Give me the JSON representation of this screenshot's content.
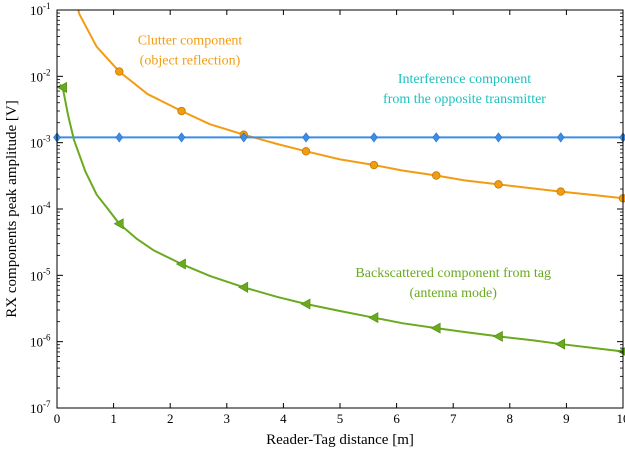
{
  "chart_data": {
    "type": "line",
    "xlabel": "Reader-Tag distance [m]",
    "ylabel": "RX components peak amplitude [V]",
    "xlim": [
      0,
      10
    ],
    "ylim": [
      1e-07,
      0.1
    ],
    "yscale": "log",
    "grid": false,
    "x_ticks": [
      0,
      1,
      2,
      3,
      4,
      5,
      6,
      7,
      8,
      9,
      10
    ],
    "y_ticks": [
      {
        "value": 1e-07,
        "base": "10",
        "exp": "-7"
      },
      {
        "value": 1e-06,
        "base": "10",
        "exp": "-6"
      },
      {
        "value": 1e-05,
        "base": "10",
        "exp": "-5"
      },
      {
        "value": 0.0001,
        "base": "10",
        "exp": "-4"
      },
      {
        "value": 0.001,
        "base": "10",
        "exp": "-3"
      },
      {
        "value": 0.01,
        "base": "10",
        "exp": "-2"
      },
      {
        "value": 0.1,
        "base": "10",
        "exp": "-1"
      }
    ],
    "series": [
      {
        "color": "#f39c12",
        "marker": "circle",
        "x": [
          0.2,
          0.4,
          0.7,
          1.1,
          1.6,
          2.2,
          2.7,
          3.3,
          3.9,
          4.4,
          5.0,
          5.6,
          6.1,
          6.7,
          7.2,
          7.8,
          8.4,
          8.9,
          9.5,
          10.0
        ],
        "y": [
          0.3,
          0.085,
          0.028,
          0.0118,
          0.0054,
          0.003,
          0.0019,
          0.00132,
          0.00095,
          0.00074,
          0.00056,
          0.00046,
          0.00038,
          0.00032,
          0.00027,
          0.000235,
          0.000205,
          0.000183,
          0.000162,
          0.000145
        ],
        "marker_x": [
          1.1,
          2.2,
          3.3,
          4.4,
          5.6,
          6.7,
          7.8,
          8.9,
          10.0
        ],
        "marker_y": [
          0.0118,
          0.003,
          0.00132,
          0.00074,
          0.00046,
          0.00032,
          0.000235,
          0.000183,
          0.000145
        ]
      },
      {
        "color": "#3a8ee6",
        "marker": "diamond",
        "x": [
          0,
          10
        ],
        "y": [
          0.0012,
          0.0012
        ],
        "marker_x": [
          0.0,
          1.1,
          2.2,
          3.3,
          4.4,
          5.6,
          6.7,
          7.8,
          8.9,
          10.0
        ],
        "marker_y": [
          0.0012,
          0.0012,
          0.0012,
          0.0012,
          0.0012,
          0.0012,
          0.0012,
          0.0012,
          0.0012,
          0.0012
        ]
      },
      {
        "color": "#6aaa1e",
        "marker": "triangle-left",
        "x": [
          0.05,
          0.1,
          0.2,
          0.3,
          0.5,
          0.7,
          0.9,
          1.1,
          1.4,
          1.7,
          2.2,
          2.7,
          3.3,
          3.9,
          4.4,
          5.0,
          5.6,
          6.1,
          6.7,
          7.2,
          7.8,
          8.4,
          8.9,
          9.5,
          10.0
        ],
        "y": [
          0.0075,
          0.0068,
          0.0025,
          0.0011,
          0.00037,
          0.000165,
          0.0001,
          6e-05,
          3.6e-05,
          2.4e-05,
          1.48e-05,
          9.8e-06,
          6.6e-06,
          4.7e-06,
          3.7e-06,
          2.9e-06,
          2.3e-06,
          1.9e-06,
          1.6e-06,
          1.4e-06,
          1.2e-06,
          1.05e-06,
          9.2e-07,
          8e-07,
          7.1e-07
        ],
        "marker_x": [
          0.1,
          1.1,
          2.2,
          3.3,
          4.4,
          5.6,
          6.7,
          7.8,
          8.9,
          10.0
        ],
        "marker_y": [
          0.0068,
          6e-05,
          1.48e-05,
          6.6e-06,
          3.7e-06,
          2.3e-06,
          1.6e-06,
          1.2e-06,
          9.2e-07,
          7.1e-07
        ]
      }
    ],
    "annotations": [
      {
        "lines": [
          "Clutter component",
          "(object reflection)"
        ],
        "color": "#f39c12",
        "x": 2.35,
        "y": 0.03
      },
      {
        "lines": [
          "Interference component",
          "from the opposite transmitter"
        ],
        "color": "#1ec0c0",
        "x": 7.2,
        "y": 0.008
      },
      {
        "lines": [
          "Backscattered component from tag",
          "(antenna mode)"
        ],
        "color": "#6aaa1e",
        "x": 7.0,
        "y": 9.4e-06
      }
    ]
  }
}
